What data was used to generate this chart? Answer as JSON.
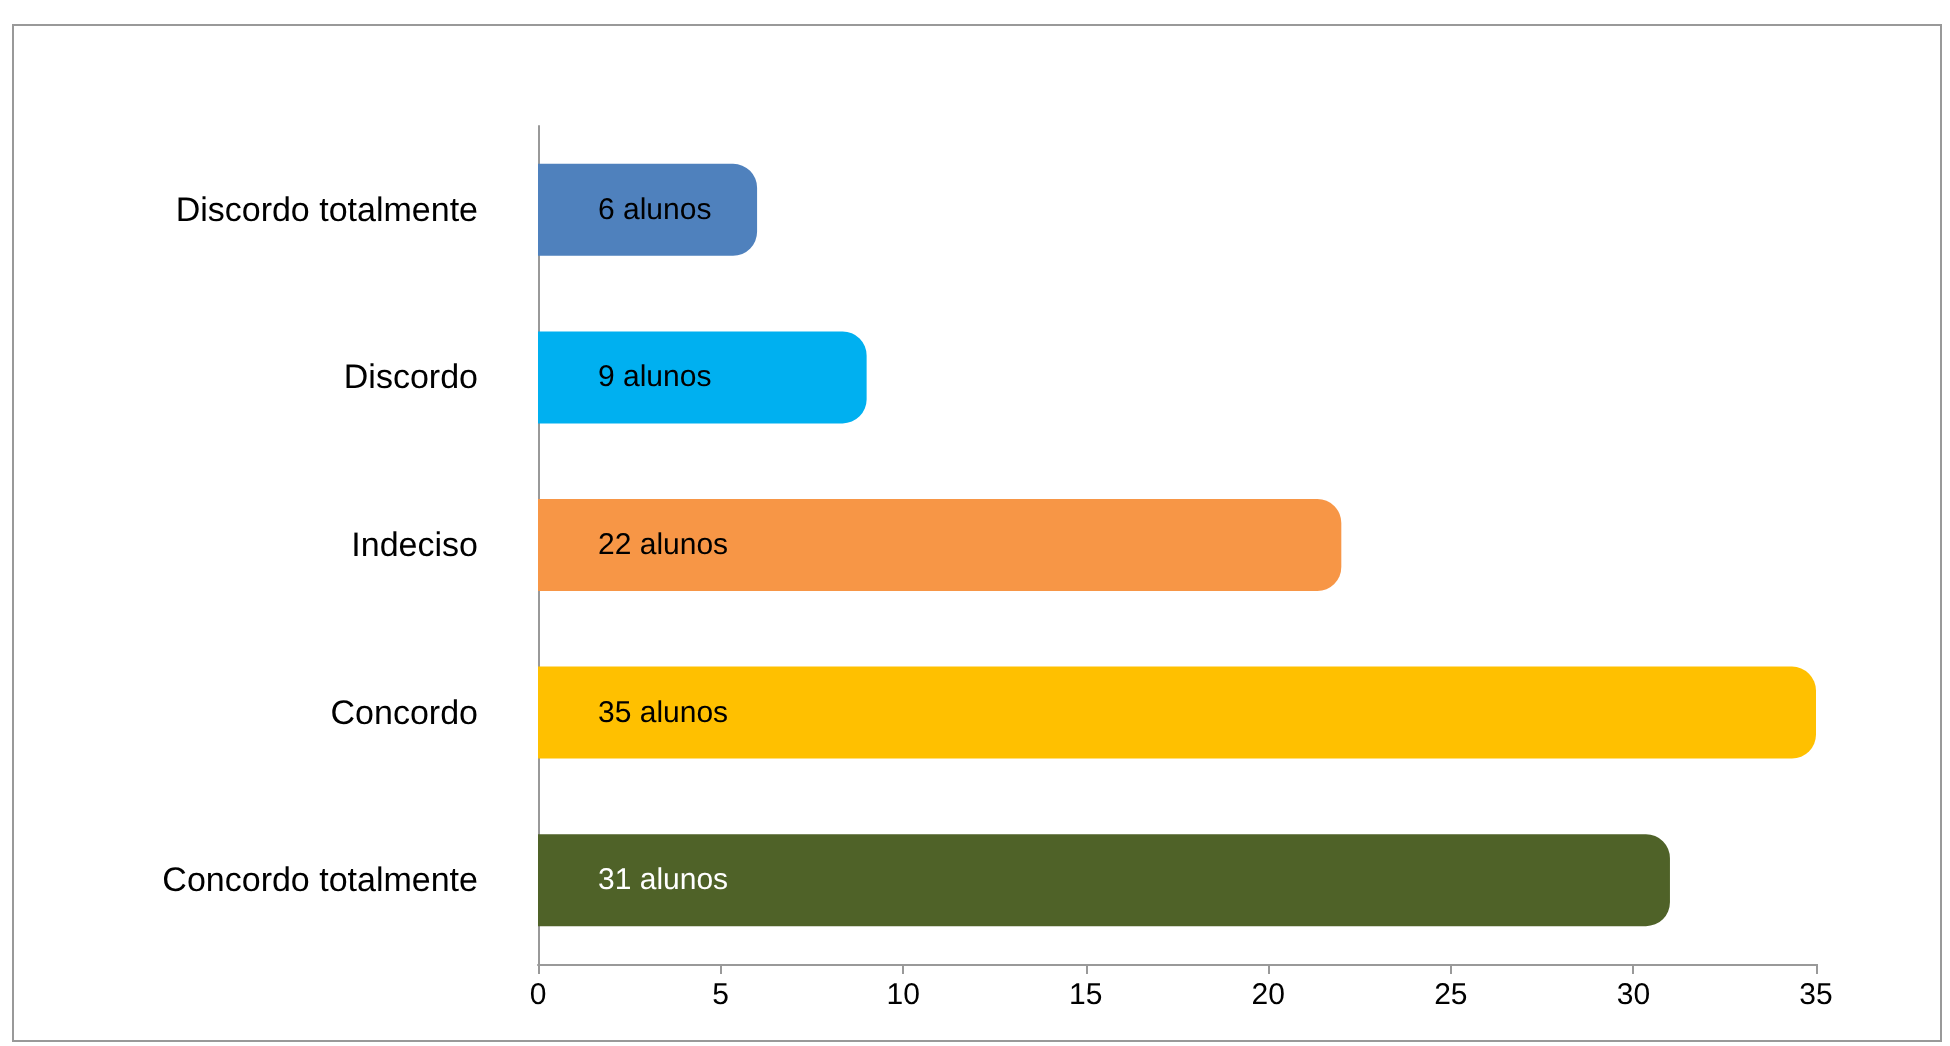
{
  "chart_data": {
    "type": "bar",
    "orientation": "horizontal",
    "categories": [
      "Discordo totalmente",
      "Discordo",
      "Indeciso",
      "Concordo",
      "Concordo totalmente"
    ],
    "values": [
      6,
      9,
      22,
      35,
      31
    ],
    "colors": [
      "#4f81bd",
      "#00b0f0",
      "#f79646",
      "#ffc000",
      "#4f6228"
    ],
    "value_labels": [
      "6 alunos",
      "9 alunos",
      "22 alunos",
      "35 alunos",
      "31 alunos"
    ],
    "xlim": [
      0,
      35
    ],
    "xticks": [
      0,
      5,
      10,
      15,
      20,
      25,
      30,
      35
    ],
    "grid": false
  }
}
